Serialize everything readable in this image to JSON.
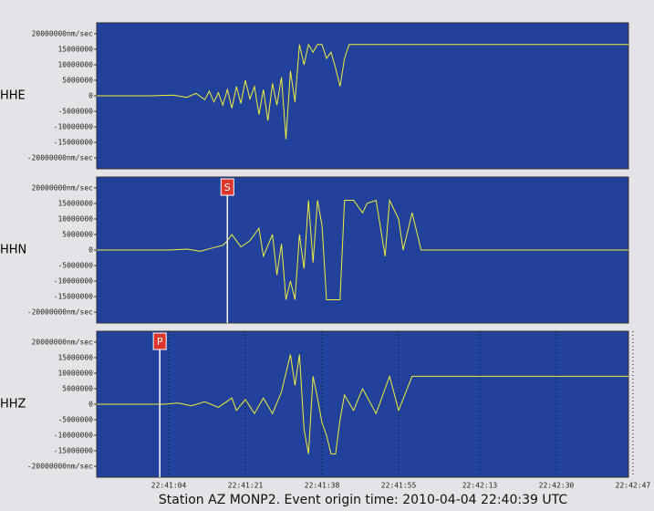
{
  "title": "Station AZ MONP2.  Event origin time: 2010-04-04 22:40:39 UTC",
  "chart_data": [
    {
      "type": "line",
      "ylabel": "HHE",
      "color": "#f2f03c",
      "background": "#22419b",
      "ylim": [
        -23500000,
        23500000
      ],
      "yticks": [
        {
          "value": 20000000,
          "label": "20000000nm/sec"
        },
        15000000,
        10000000,
        5000000,
        0,
        -5000000,
        -10000000,
        -15000000,
        {
          "value": -20000000,
          "label": "-20000000nm/sec"
        }
      ],
      "x": [
        "22:40:48",
        "22:41:00",
        "22:41:05",
        "22:41:08",
        "22:41:10",
        "22:41:12",
        "22:41:13",
        "22:41:14",
        "22:41:15",
        "22:41:16",
        "22:41:17",
        "22:41:18",
        "22:41:19",
        "22:41:20",
        "22:41:21",
        "22:41:22",
        "22:41:23",
        "22:41:24",
        "22:41:25",
        "22:41:26",
        "22:41:27",
        "22:41:28",
        "22:41:29",
        "22:41:30",
        "22:41:31",
        "22:41:32",
        "22:41:33",
        "22:41:34",
        "22:41:35",
        "22:41:36",
        "22:41:37",
        "22:41:38",
        "22:41:39",
        "22:41:40",
        "22:41:41",
        "22:41:42",
        "22:41:43",
        "22:41:44",
        "22:42:46"
      ],
      "values": [
        0,
        0,
        200000,
        -500000,
        800000,
        -1200000,
        1500000,
        -2000000,
        1000000,
        -3000000,
        2000000,
        -4000000,
        3000000,
        -2500000,
        5000000,
        -1000000,
        3000000,
        -6000000,
        2000000,
        -8000000,
        4000000,
        -3000000,
        6000000,
        -14000000,
        8000000,
        -2000000,
        16500000,
        10000000,
        16500000,
        14000000,
        16500000,
        16500000,
        12000000,
        14000000,
        9000000,
        3000000,
        12000000,
        16500000,
        16500000
      ]
    },
    {
      "type": "line",
      "ylabel": "HHN",
      "color": "#f2f03c",
      "background": "#22419b",
      "ylim": [
        -23500000,
        23500000
      ],
      "yticks": [
        {
          "value": 20000000,
          "label": "20000000nm/sec"
        },
        15000000,
        10000000,
        5000000,
        0,
        -5000000,
        -10000000,
        -15000000,
        {
          "value": -20000000,
          "label": "-20000000nm/sec"
        }
      ],
      "annotations": [
        {
          "label": "S",
          "x": "22:41:17"
        }
      ],
      "x": [
        "22:40:48",
        "22:41:04",
        "22:41:08",
        "22:41:11",
        "22:41:14",
        "22:41:16",
        "22:41:17",
        "22:41:18",
        "22:41:20",
        "22:41:22",
        "22:41:24",
        "22:41:25",
        "22:41:27",
        "22:41:28",
        "22:41:29",
        "22:41:30",
        "22:41:31",
        "22:41:32",
        "22:41:33",
        "22:41:34",
        "22:41:35",
        "22:41:36",
        "22:41:37",
        "22:41:38",
        "22:41:39",
        "22:41:40",
        "22:41:42",
        "22:41:43",
        "22:41:45",
        "22:41:47",
        "22:41:48",
        "22:41:50",
        "22:41:52",
        "22:41:53",
        "22:41:55",
        "22:41:56",
        "22:41:58",
        "22:42:00",
        "22:42:46"
      ],
      "values": [
        0,
        0,
        300000,
        -400000,
        800000,
        1500000,
        3000000,
        5000000,
        1000000,
        3000000,
        7000000,
        -2000000,
        5000000,
        -8000000,
        2000000,
        -16000000,
        -10000000,
        -16000000,
        5000000,
        -6000000,
        16000000,
        -4000000,
        16000000,
        8000000,
        -16000000,
        -16000000,
        -16000000,
        16000000,
        16000000,
        12000000,
        15000000,
        16000000,
        -2000000,
        16000000,
        10000000,
        0,
        12000000,
        0,
        0
      ]
    },
    {
      "type": "line",
      "ylabel": "HHZ",
      "color": "#f2f03c",
      "background": "#22419b",
      "ylim": [
        -23500000,
        23500000
      ],
      "yticks": [
        {
          "value": 20000000,
          "label": "20000000nm/sec"
        },
        15000000,
        10000000,
        5000000,
        0,
        -5000000,
        -10000000,
        -15000000,
        {
          "value": -20000000,
          "label": "-20000000nm/sec"
        }
      ],
      "xlim": [
        "22:40:48",
        "22:42:46"
      ],
      "xticks": [
        "22:41:04",
        "22:41:21",
        "22:41:38",
        "22:41:55",
        "22:42:13",
        "22:42:30",
        "22:42:47"
      ],
      "grid": true,
      "annotations": [
        {
          "label": "P",
          "x": "22:41:02"
        }
      ],
      "x": [
        "22:40:48",
        "22:41:03",
        "22:41:06",
        "22:41:09",
        "22:41:12",
        "22:41:15",
        "22:41:18",
        "22:41:19",
        "22:41:21",
        "22:41:23",
        "22:41:25",
        "22:41:27",
        "22:41:29",
        "22:41:31",
        "22:41:32",
        "22:41:33",
        "22:41:34",
        "22:41:35",
        "22:41:36",
        "22:41:37",
        "22:41:38",
        "22:41:39",
        "22:41:40",
        "22:41:41",
        "22:41:42",
        "22:41:43",
        "22:41:45",
        "22:41:47",
        "22:41:50",
        "22:41:53",
        "22:41:55",
        "22:41:58",
        "22:42:00",
        "22:42:46"
      ],
      "values": [
        0,
        0,
        400000,
        -500000,
        800000,
        -1000000,
        2000000,
        -2000000,
        1500000,
        -3000000,
        2000000,
        -3000000,
        4000000,
        16000000,
        6000000,
        16000000,
        -8000000,
        -16000000,
        9000000,
        2000000,
        -6000000,
        -10000000,
        -16000000,
        -16000000,
        -5000000,
        3000000,
        -2000000,
        5000000,
        -3000000,
        9000000,
        -2000000,
        9000000,
        9000000,
        9000000
      ]
    }
  ]
}
